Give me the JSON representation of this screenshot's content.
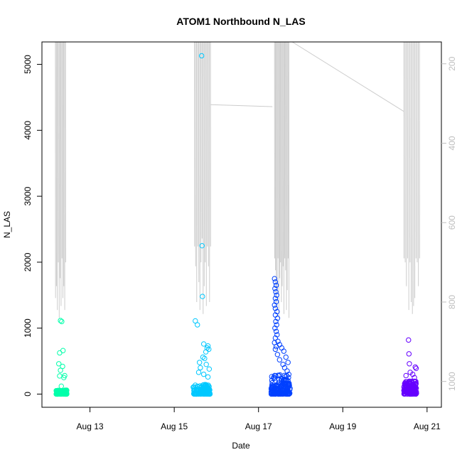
{
  "chart_data": {
    "type": "scatter",
    "title": "ATOM1 Northbound N_LAS",
    "xlabel": "Date",
    "ylabel": "N_LAS",
    "x_ticks": [
      {
        "day": 13,
        "label": "Aug 13"
      },
      {
        "day": 15,
        "label": "Aug 15"
      },
      {
        "day": 17,
        "label": "Aug 17"
      },
      {
        "day": 19,
        "label": "Aug 19"
      },
      {
        "day": 21,
        "label": "Aug 21"
      }
    ],
    "xlim_day": [
      11.86,
      21.34
    ],
    "ylim": [
      -200,
      5340
    ],
    "y_ticks": [
      0,
      1000,
      2000,
      3000,
      4000,
      5000
    ],
    "y2_ticks": [
      200,
      400,
      600,
      800,
      1000
    ],
    "y2_range": [
      145,
      1065
    ],
    "y2_reversed": true,
    "grid": false,
    "colors": {
      "axis": "#000000",
      "secondary_axis": "#bebebe",
      "depth_line": "#cccccc"
    },
    "series": [
      {
        "color": "#00ffaa",
        "x_range": [
          12.2,
          12.45
        ],
        "core_max": 60,
        "outliers": [
          [
            12.3,
            1115
          ],
          [
            12.33,
            1100
          ],
          [
            12.36,
            660
          ],
          [
            12.28,
            625
          ],
          [
            12.26,
            460
          ],
          [
            12.35,
            420
          ],
          [
            12.3,
            360
          ],
          [
            12.4,
            280
          ],
          [
            12.28,
            275
          ],
          [
            12.38,
            250
          ],
          [
            12.32,
            120
          ]
        ]
      },
      {
        "color": "#00c8ff",
        "x_range": [
          15.45,
          15.85
        ],
        "core_max": 150,
        "outliers": [
          [
            15.65,
            5130
          ],
          [
            15.66,
            2250
          ],
          [
            15.67,
            1480
          ],
          [
            15.5,
            1110
          ],
          [
            15.55,
            1050
          ],
          [
            15.7,
            760
          ],
          [
            15.8,
            730
          ],
          [
            15.78,
            700
          ],
          [
            15.82,
            680
          ],
          [
            15.75,
            640
          ],
          [
            15.68,
            560
          ],
          [
            15.72,
            540
          ],
          [
            15.6,
            480
          ],
          [
            15.76,
            450
          ],
          [
            15.62,
            400
          ],
          [
            15.83,
            380
          ],
          [
            15.58,
            330
          ],
          [
            15.7,
            300
          ],
          [
            15.8,
            260
          ]
        ]
      },
      {
        "color": "#0040ff",
        "x_range": [
          17.3,
          17.75
        ],
        "core_max": 300,
        "outliers": [
          [
            17.38,
            1750
          ],
          [
            17.4,
            1700
          ],
          [
            17.42,
            1650
          ],
          [
            17.39,
            1600
          ],
          [
            17.41,
            1550
          ],
          [
            17.43,
            1500
          ],
          [
            17.4,
            1450
          ],
          [
            17.42,
            1400
          ],
          [
            17.38,
            1350
          ],
          [
            17.4,
            1300
          ],
          [
            17.44,
            1250
          ],
          [
            17.4,
            1200
          ],
          [
            17.45,
            1150
          ],
          [
            17.41,
            1100
          ],
          [
            17.43,
            1050
          ],
          [
            17.39,
            1000
          ],
          [
            17.42,
            950
          ],
          [
            17.44,
            900
          ],
          [
            17.4,
            850
          ],
          [
            17.46,
            800
          ],
          [
            17.38,
            780
          ],
          [
            17.5,
            750
          ],
          [
            17.42,
            720
          ],
          [
            17.55,
            700
          ],
          [
            17.4,
            680
          ],
          [
            17.6,
            650
          ],
          [
            17.45,
            600
          ],
          [
            17.65,
            560
          ],
          [
            17.5,
            520
          ],
          [
            17.7,
            480
          ],
          [
            17.58,
            450
          ],
          [
            17.62,
            400
          ],
          [
            17.68,
            350
          ]
        ]
      },
      {
        "color": "#6600ff",
        "x_range": [
          20.45,
          20.75
        ],
        "core_max": 200,
        "outliers": [
          [
            20.56,
            820
          ],
          [
            20.57,
            610
          ],
          [
            20.58,
            460
          ],
          [
            20.72,
            410
          ],
          [
            20.74,
            390
          ],
          [
            20.6,
            330
          ],
          [
            20.66,
            300
          ],
          [
            20.5,
            280
          ],
          [
            20.7,
            250
          ]
        ]
      }
    ],
    "depth_trace": {
      "clusters": [
        {
          "day_start": 12.18,
          "day_end": 12.42,
          "n": 12,
          "bottoms": [
            790,
            760,
            820,
            700,
            840,
            740,
            810,
            690
          ]
        },
        {
          "day_start": 15.48,
          "day_end": 15.86,
          "n": 16,
          "bottoms": [
            660,
            710,
            800,
            660,
            750,
            820,
            700,
            640,
            830,
            760,
            700,
            810
          ]
        },
        {
          "day_start": 17.38,
          "day_end": 17.72,
          "n": 18,
          "bottoms": [
            690,
            720,
            820,
            770,
            690,
            840,
            740,
            700,
            800,
            760,
            710,
            830
          ]
        },
        {
          "day_start": 20.45,
          "day_end": 20.82,
          "n": 14,
          "bottoms": [
            690,
            700,
            760,
            690,
            820,
            700,
            800,
            830,
            810,
            790
          ]
        }
      ],
      "connectors": [
        [
          [
            15.86,
            303
          ],
          [
            17.33,
            308
          ]
        ],
        [
          [
            17.8,
            145
          ],
          [
            20.45,
            320
          ]
        ]
      ]
    }
  }
}
